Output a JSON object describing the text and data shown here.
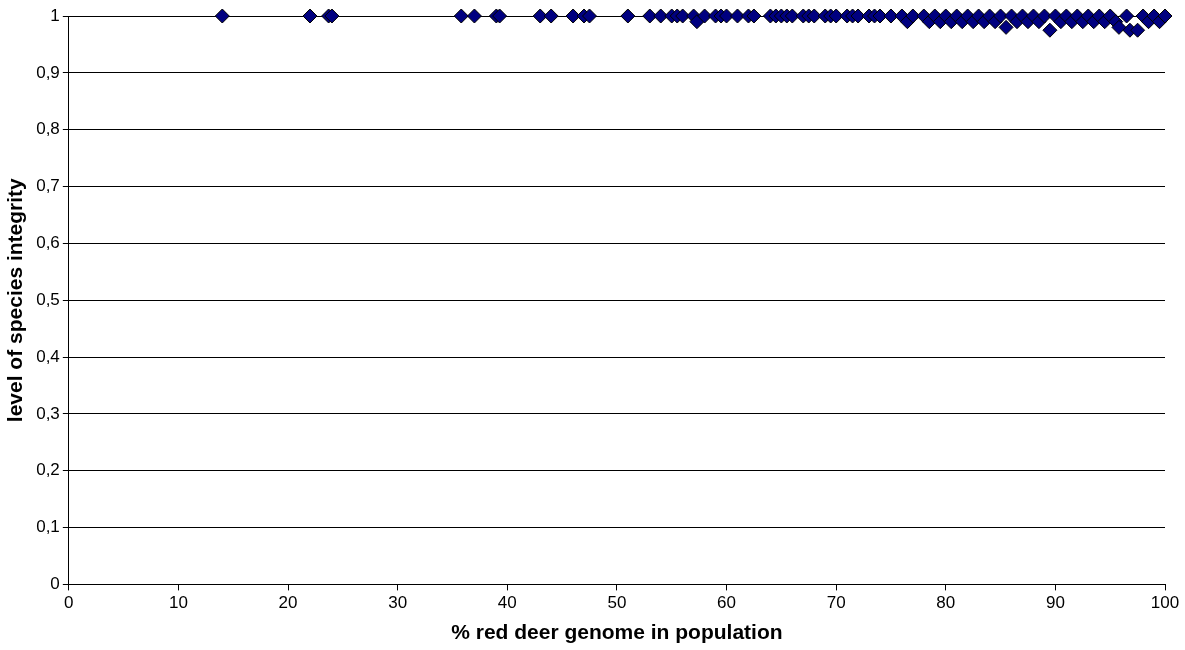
{
  "chart_data": {
    "type": "scatter",
    "xlabel": "% red deer genome in population",
    "ylabel": "level of species integrity",
    "xlim": [
      0,
      100
    ],
    "xticks": [
      0,
      10,
      20,
      30,
      40,
      50,
      60,
      70,
      80,
      90,
      100
    ],
    "ylim": [
      0,
      1
    ],
    "yticks": [
      0,
      {
        "value": 0.1,
        "label": "0,1"
      },
      {
        "value": 0.2,
        "label": "0,2"
      },
      {
        "value": 0.3,
        "label": "0,3"
      },
      {
        "value": 0.4,
        "label": "0,4"
      },
      {
        "value": 0.5,
        "label": "0,5"
      },
      {
        "value": 0.6,
        "label": "0,6"
      },
      {
        "value": 0.7,
        "label": "0,7"
      },
      {
        "value": 0.8,
        "label": "0,8"
      },
      {
        "value": 0.9,
        "label": "0,9"
      },
      1
    ],
    "grid": "y",
    "marker": "diamond",
    "legend": false,
    "series": [
      {
        "color": "#000080",
        "x": [
          14,
          22,
          23.7,
          24,
          35.8,
          37,
          39,
          39.3,
          43,
          44,
          46,
          47,
          47.5,
          51,
          53,
          54,
          55,
          55.5,
          56,
          57,
          57.3,
          58,
          59,
          59.5,
          60,
          61,
          62,
          62.5,
          64,
          64.5,
          65,
          65.5,
          66,
          67,
          67.5,
          68,
          69,
          69.5,
          70,
          71,
          71.5,
          72,
          73,
          73.5,
          74,
          75,
          76,
          76.5,
          77,
          78,
          78.5,
          79,
          79.5,
          80,
          80.5,
          81,
          81.5,
          82,
          82.5,
          83,
          83.5,
          84,
          84.5,
          85,
          85.5,
          86,
          86.5,
          87,
          87.5,
          88,
          88.5,
          89,
          89.5,
          90,
          90.5,
          91,
          91.5,
          92,
          92.5,
          93,
          93.5,
          94,
          94.5,
          95,
          95.5,
          95.8,
          96.5,
          96.8,
          97.5,
          98,
          98.5,
          99,
          99.5,
          100
        ],
        "values": [
          1,
          1,
          1,
          1,
          1,
          1,
          1,
          1,
          1,
          1,
          1,
          1,
          1,
          1,
          1,
          1,
          1,
          1,
          1,
          1,
          0.99,
          1,
          1,
          1,
          1,
          1,
          1,
          1,
          1,
          1,
          1,
          1,
          1,
          1,
          1,
          1,
          1,
          1,
          1,
          1,
          1,
          1,
          1,
          1,
          1,
          1,
          1,
          0.99,
          1,
          1,
          0.99,
          1,
          0.99,
          1,
          0.99,
          1,
          0.99,
          1,
          0.99,
          1,
          0.99,
          1,
          0.99,
          1,
          0.98,
          1,
          0.99,
          1,
          0.99,
          1,
          0.99,
          1,
          0.975,
          1,
          0.99,
          1,
          0.99,
          1,
          0.99,
          1,
          0.99,
          1,
          0.99,
          1,
          0.99,
          0.98,
          1,
          0.975,
          0.975,
          1,
          0.99,
          1,
          0.99,
          1
        ]
      }
    ]
  }
}
